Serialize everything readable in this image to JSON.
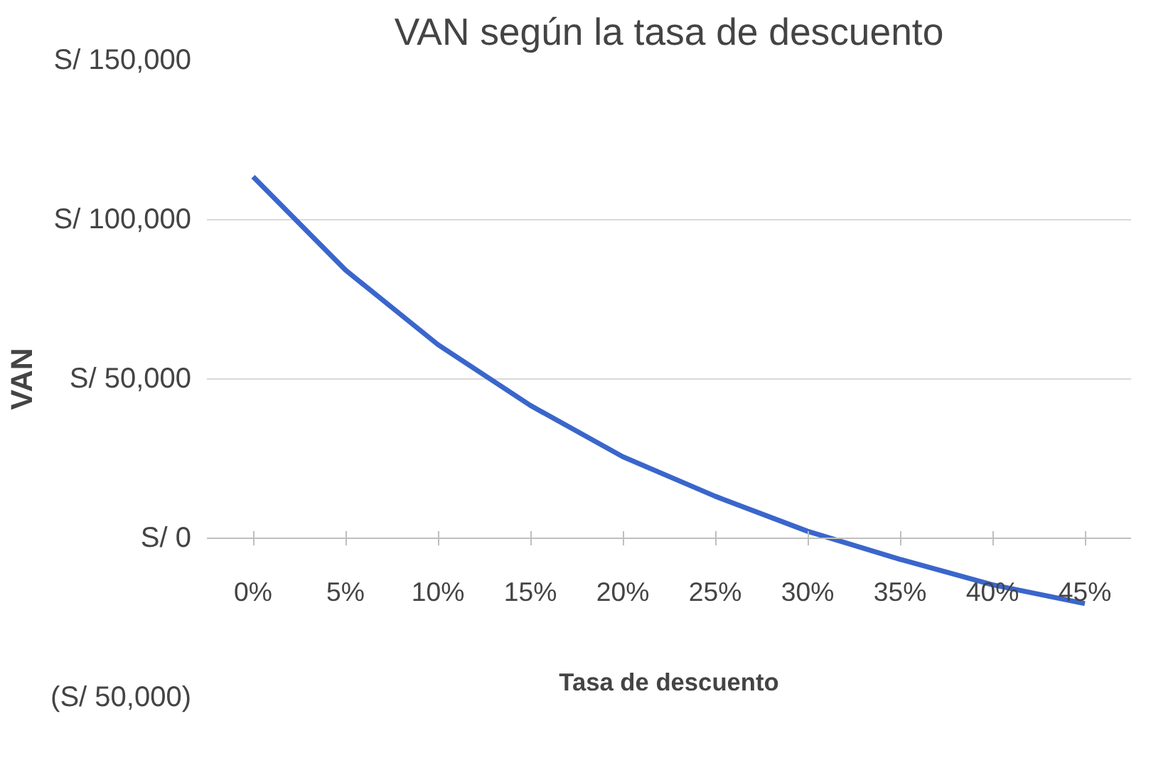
{
  "chart_data": {
    "type": "line",
    "title": "VAN según la tasa de descuento",
    "xlabel": "Tasa de descuento",
    "ylabel": "VAN",
    "categories": [
      "0%",
      "5%",
      "10%",
      "15%",
      "20%",
      "25%",
      "30%",
      "35%",
      "40%",
      "45%"
    ],
    "series": [
      {
        "color": "#3a66cc",
        "values": [
          113500,
          84200,
          60800,
          41700,
          25600,
          13200,
          2200,
          -6600,
          -14600,
          -20500
        ]
      }
    ],
    "ylim": [
      -50000,
      150000
    ],
    "yticks": [
      {
        "value": -50000,
        "label": "(S/ 50,000)"
      },
      {
        "value": 0,
        "label": "S/ 0"
      },
      {
        "value": 50000,
        "label": "S/ 50,000"
      },
      {
        "value": 100000,
        "label": "S/ 100,000"
      },
      {
        "value": 150000,
        "label": "S/ 150,000"
      }
    ],
    "grid": "y",
    "marker": "none",
    "line_style": "solid"
  }
}
